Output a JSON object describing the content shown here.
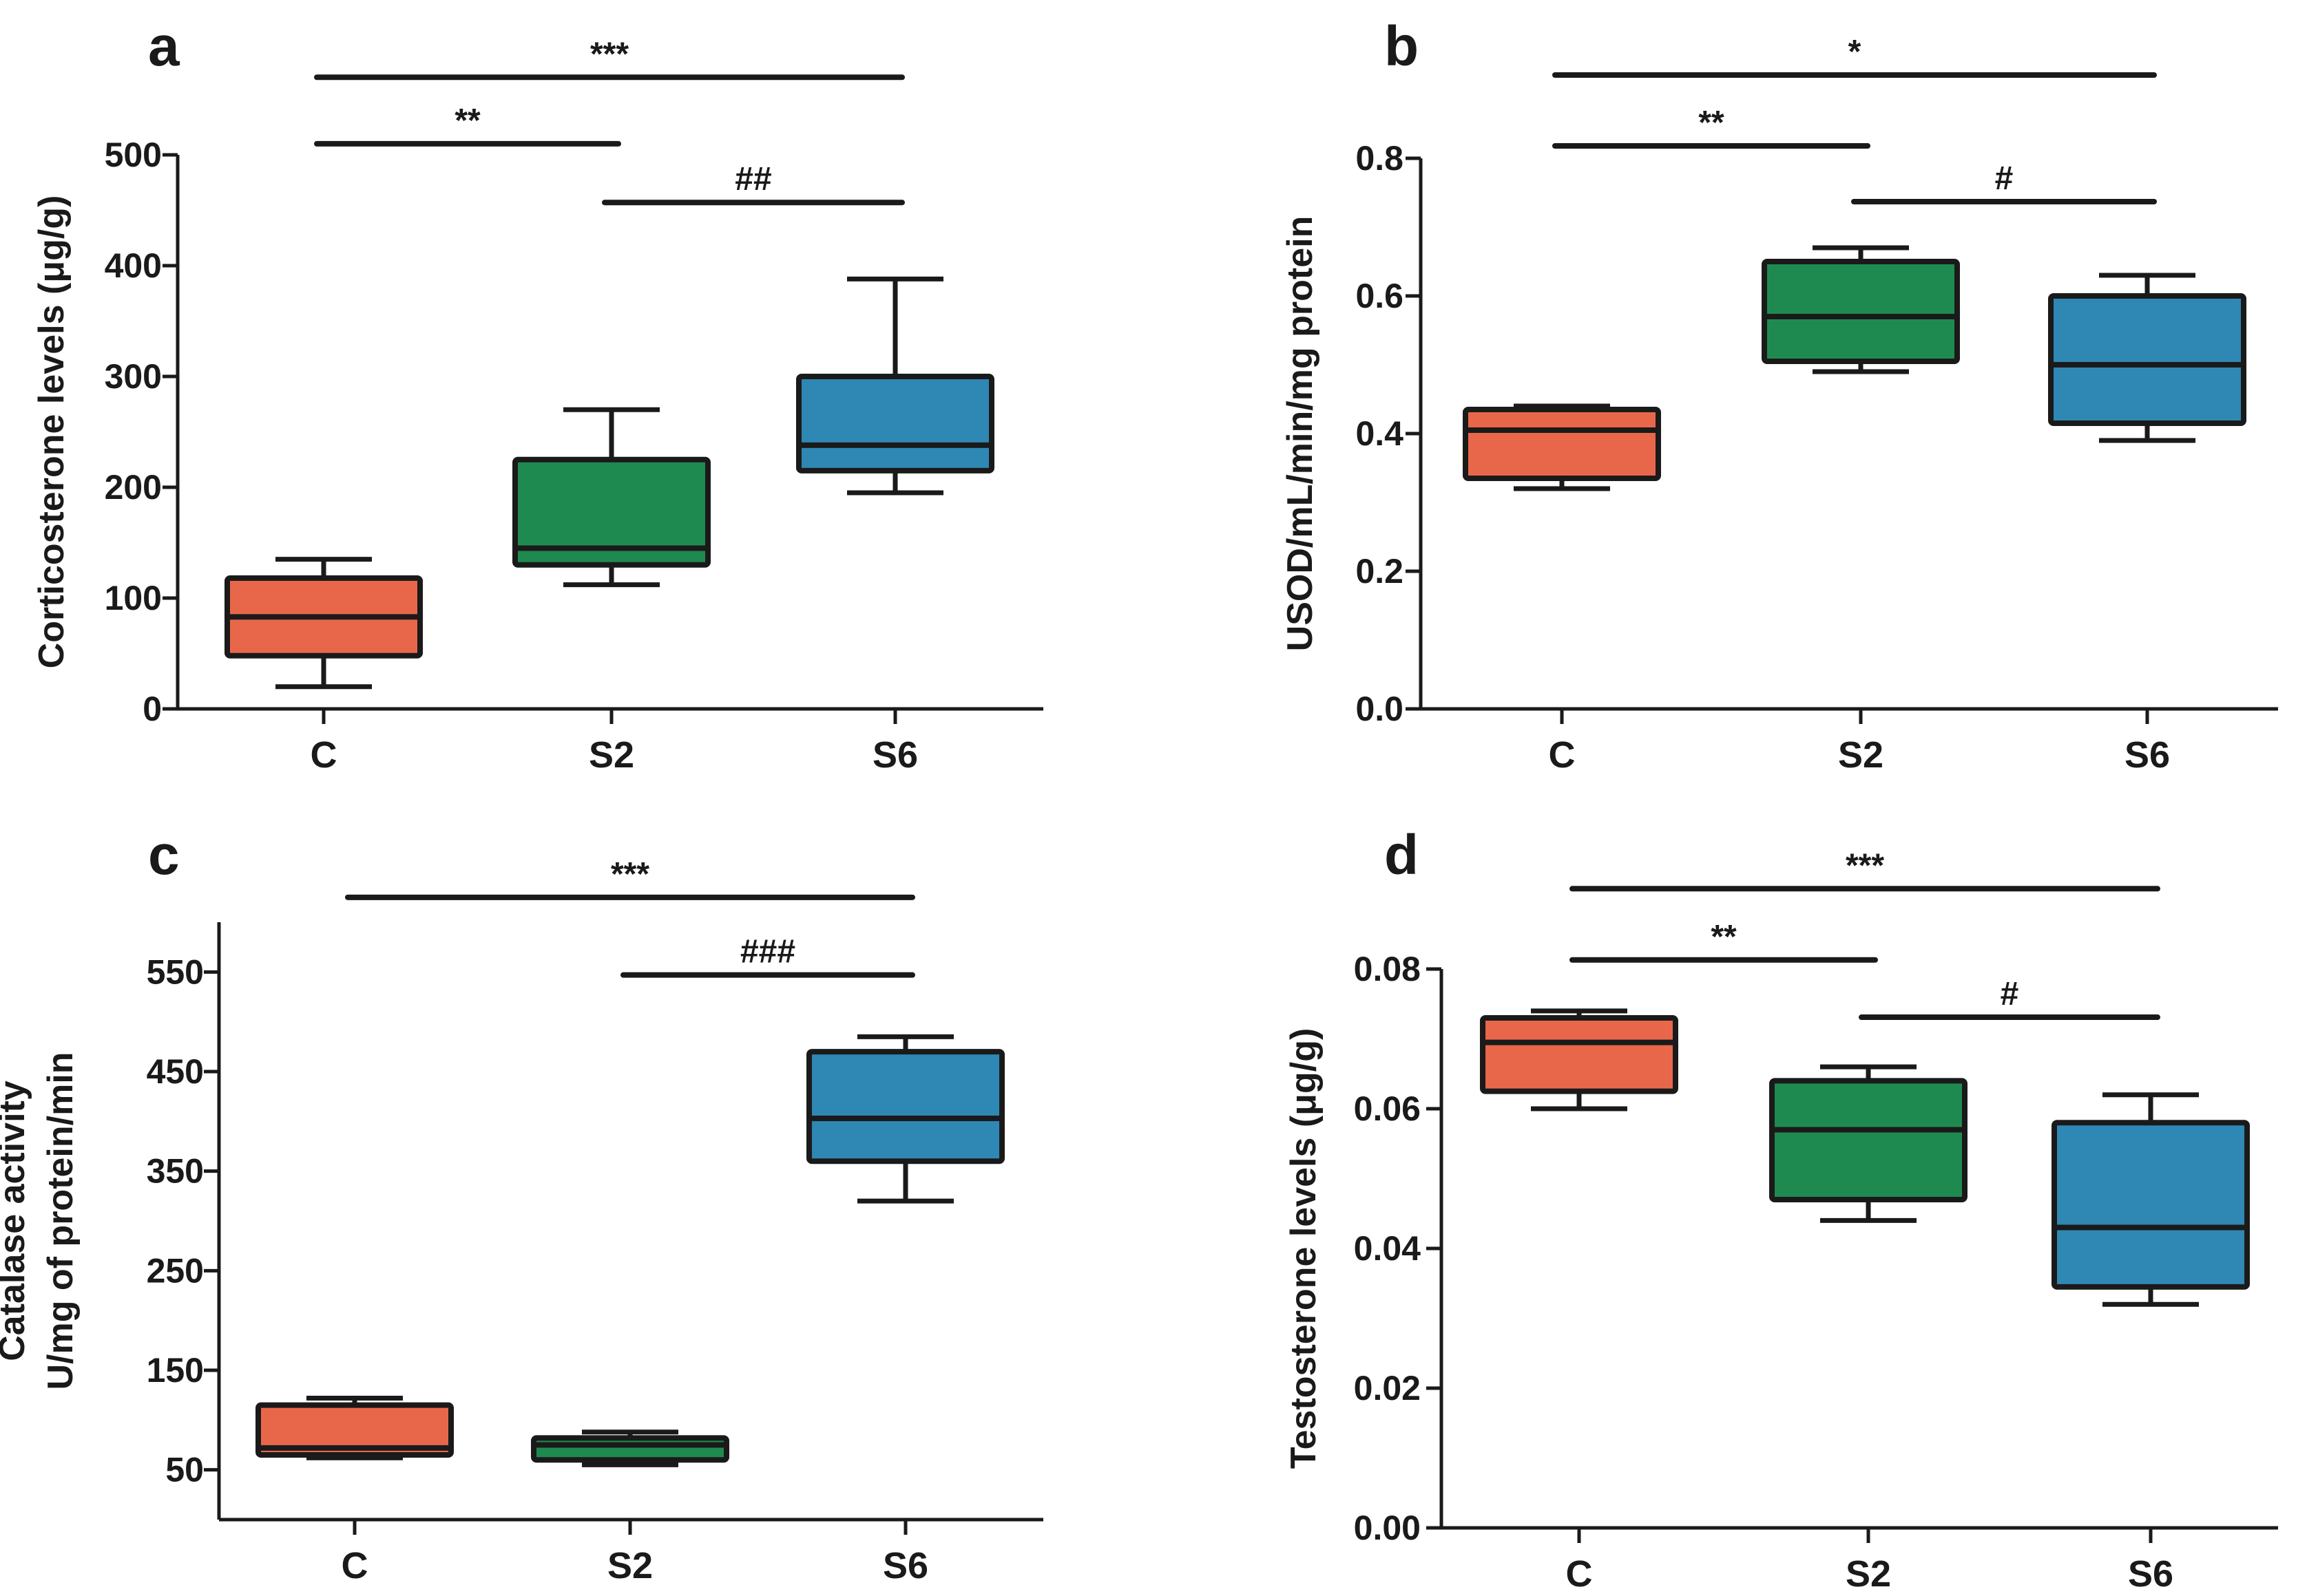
{
  "figure": {
    "description_labels": [
      "a",
      "b",
      "c",
      "d"
    ]
  },
  "chart_data": [
    {
      "panel": "a",
      "type": "box",
      "title": "",
      "xlabel": "",
      "ylabel": "Corticosterone levels (μg/g)",
      "ylabel_lines": [
        "Corticosterone levels (μg/g)"
      ],
      "categories": [
        "C",
        "S2",
        "S6"
      ],
      "ylim": [
        0,
        500
      ],
      "yticks": [
        0,
        100,
        200,
        300,
        400,
        500
      ],
      "ytick_labels": [
        "0",
        "100",
        "200",
        "300",
        "400",
        "500"
      ],
      "boxes": [
        {
          "category": "C",
          "color": "#e8674a",
          "min": 20,
          "q1": 48,
          "median": 83,
          "q3": 118,
          "max": 135
        },
        {
          "category": "S2",
          "color": "#1f8a50",
          "min": 112,
          "q1": 130,
          "median": 145,
          "q3": 225,
          "max": 270
        },
        {
          "category": "S6",
          "color": "#2f87b4",
          "min": 195,
          "q1": 215,
          "median": 238,
          "q3": 300,
          "max": 388
        }
      ],
      "significance": [
        {
          "from": "C",
          "to": "S6",
          "label": "***",
          "y": 570
        },
        {
          "from": "C",
          "to": "S2",
          "label": "**",
          "y": 510
        },
        {
          "from": "S2",
          "to": "S6",
          "label": "##",
          "y": 457
        }
      ]
    },
    {
      "panel": "b",
      "type": "box",
      "title": "",
      "xlabel": "",
      "ylabel": "USOD/mL/min/mg protein",
      "ylabel_lines": [
        "USOD/mL/min/mg protein"
      ],
      "categories": [
        "C",
        "S2",
        "S6"
      ],
      "ylim": [
        0,
        0.8
      ],
      "yticks": [
        0,
        0.2,
        0.4,
        0.6,
        0.8
      ],
      "ytick_labels": [
        "0.0",
        "0.2",
        "0.4",
        "0.6",
        "0.8"
      ],
      "boxes": [
        {
          "category": "C",
          "color": "#e8674a",
          "min": 0.32,
          "q1": 0.335,
          "median": 0.405,
          "q3": 0.435,
          "max": 0.44
        },
        {
          "category": "S2",
          "color": "#1f8a50",
          "min": 0.49,
          "q1": 0.505,
          "median": 0.57,
          "q3": 0.65,
          "max": 0.67
        },
        {
          "category": "S6",
          "color": "#2f87b4",
          "min": 0.39,
          "q1": 0.415,
          "median": 0.5,
          "q3": 0.6,
          "max": 0.63
        }
      ],
      "significance": [
        {
          "from": "C",
          "to": "S6",
          "label": "*",
          "y": 0.921
        },
        {
          "from": "C",
          "to": "S2",
          "label": "**",
          "y": 0.818
        },
        {
          "from": "S2",
          "to": "S6",
          "label": "#",
          "y": 0.737
        }
      ]
    },
    {
      "panel": "c",
      "type": "box",
      "title": "",
      "xlabel": "",
      "ylabel": "Catalase activity U/mg of protein/min",
      "ylabel_lines": [
        "Catalase activity",
        "U/mg of protein/min"
      ],
      "categories": [
        "C",
        "S2",
        "S6"
      ],
      "ylim": [
        0,
        600
      ],
      "yticks": [
        50,
        150,
        250,
        350,
        450,
        550
      ],
      "ytick_labels": [
        "50",
        "150",
        "250",
        "350",
        "450",
        "550"
      ],
      "boxes": [
        {
          "category": "C",
          "color": "#e8674a",
          "min": 62,
          "q1": 65,
          "median": 72,
          "q3": 115,
          "max": 122
        },
        {
          "category": "S2",
          "color": "#1f8a50",
          "min": 55,
          "q1": 60,
          "median": 75,
          "q3": 82,
          "max": 88
        },
        {
          "category": "S6",
          "color": "#2f87b4",
          "min": 320,
          "q1": 360,
          "median": 403,
          "q3": 470,
          "max": 485
        }
      ],
      "significance": [
        {
          "from": "C",
          "to": "S6",
          "label": "***",
          "y": 625
        },
        {
          "from": "S2",
          "to": "S6",
          "label": "###",
          "y": 547
        }
      ]
    },
    {
      "panel": "d",
      "type": "box",
      "title": "",
      "xlabel": "",
      "ylabel": "Testosterone levels (μg/g)",
      "ylabel_lines": [
        "Testosterone levels (μg/g)"
      ],
      "categories": [
        "C",
        "S2",
        "S6"
      ],
      "ylim": [
        0,
        0.08
      ],
      "yticks": [
        0,
        0.02,
        0.04,
        0.06,
        0.08
      ],
      "ytick_labels": [
        "0.00",
        "0.02",
        "0.04",
        "0.06",
        "0.08"
      ],
      "boxes": [
        {
          "category": "C",
          "color": "#e8674a",
          "min": 0.06,
          "q1": 0.0625,
          "median": 0.0695,
          "q3": 0.073,
          "max": 0.074
        },
        {
          "category": "S2",
          "color": "#1f8a50",
          "min": 0.044,
          "q1": 0.047,
          "median": 0.057,
          "q3": 0.064,
          "max": 0.066
        },
        {
          "category": "S6",
          "color": "#2f87b4",
          "min": 0.032,
          "q1": 0.0345,
          "median": 0.043,
          "q3": 0.058,
          "max": 0.062
        }
      ],
      "significance": [
        {
          "from": "C",
          "to": "S6",
          "label": "***",
          "y": 0.0915
        },
        {
          "from": "C",
          "to": "S2",
          "label": "**",
          "y": 0.0813
        },
        {
          "from": "S2",
          "to": "S6",
          "label": "#",
          "y": 0.0731
        }
      ]
    }
  ]
}
